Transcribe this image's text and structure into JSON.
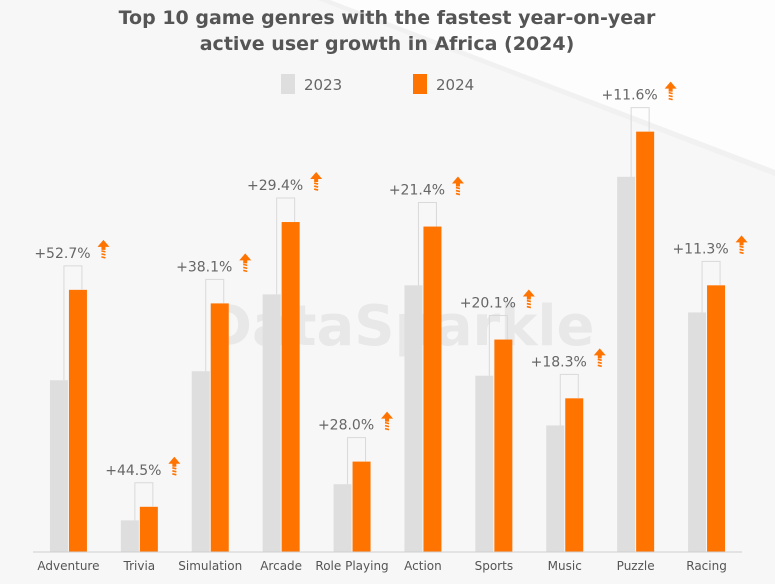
{
  "chart_data": {
    "type": "bar",
    "title": "Top 10 game genres with the fastest year-on-year active user growth in Africa (2024)",
    "title_lines": [
      "Top 10 game genres with the fastest year-on-year",
      "active user growth in Africa (2024)"
    ],
    "categories": [
      "Adventure",
      "Trivia",
      "Simulation",
      "Arcade",
      "Role Playing",
      "Action",
      "Sports",
      "Music",
      "Puzzle",
      "Racing"
    ],
    "series": [
      {
        "name": "2023",
        "color": "#dedede",
        "values": [
          38,
          7,
          40,
          57,
          15,
          59,
          39,
          28,
          83,
          53
        ]
      },
      {
        "name": "2024",
        "color": "#ff7300",
        "values": [
          58,
          10,
          55,
          73,
          20,
          72,
          47,
          34,
          93,
          59
        ]
      }
    ],
    "growth_labels": [
      "+52.7%",
      "+44.5%",
      "+38.1%",
      "+29.4%",
      "+28.0%",
      "+21.4%",
      "+20.1%",
      "+18.3%",
      "+11.6%",
      "+11.3%"
    ],
    "ylim": [
      0,
      100
    ],
    "grid": false,
    "legend": "top-center",
    "watermark": "DataSparkle",
    "colors": {
      "accent": "#ff7300",
      "baseline_bar": "#dedede",
      "text": "#555555",
      "title": "#555555"
    }
  }
}
